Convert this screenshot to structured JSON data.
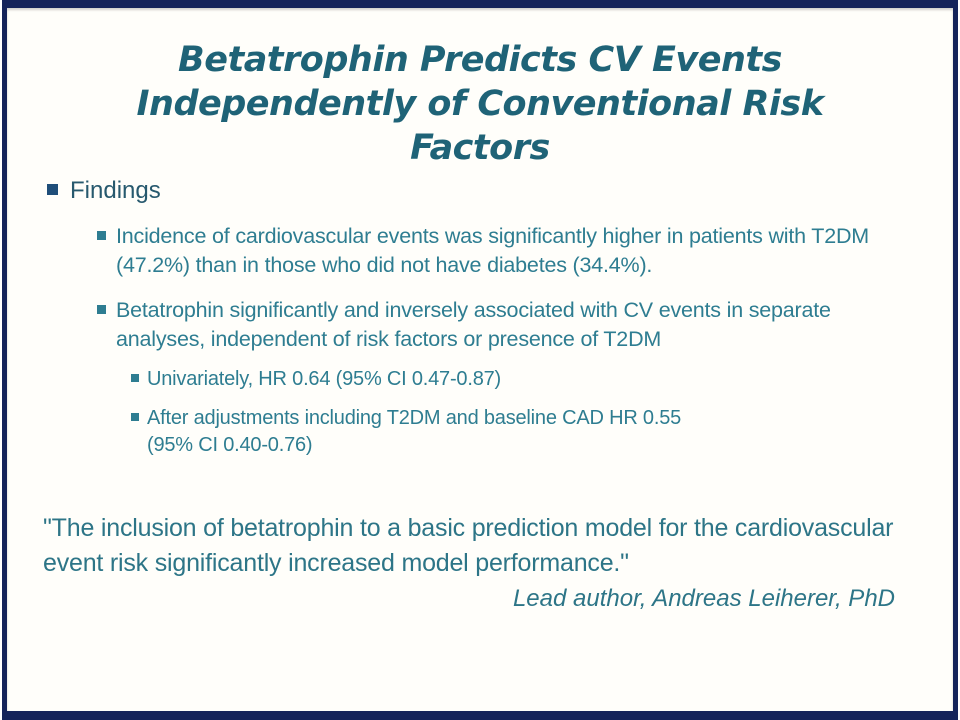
{
  "slide": {
    "title": {
      "line1": "Betatrophin Predicts CV Events",
      "line2": "Independently of Conventional Risk",
      "line3": "Factors"
    },
    "findings": {
      "label": "Findings"
    },
    "bullets": {
      "item1": "Incidence of cardiovascular events was significantly higher in patients with T2DM (47.2%) than in those who did not have diabetes (34.4%).",
      "item2": "Betatrophin significantly and inversely associated with CV events in separate analyses, independent of risk factors or presence of T2DM",
      "sub1": "Univariately, HR 0.64 (95% CI 0.47-0.87)",
      "sub2": "After adjustments including T2DM and baseline CAD HR 0.55 (95% CI 0.40-0.76)"
    },
    "quote": {
      "text": "\"The inclusion of betatrophin to a basic prediction model for the cardiovascular event risk significantly increased model performance.\"",
      "attribution": "Lead author, Andreas Leiherer, PhD"
    },
    "colors": {
      "frame_navy": "#14235a",
      "title_teal": "#1f6377",
      "body_teal": "#2e7d91",
      "findings_teal": "#27596e",
      "bullet_navy": "#1f4e79",
      "background": "#fffefa"
    }
  }
}
